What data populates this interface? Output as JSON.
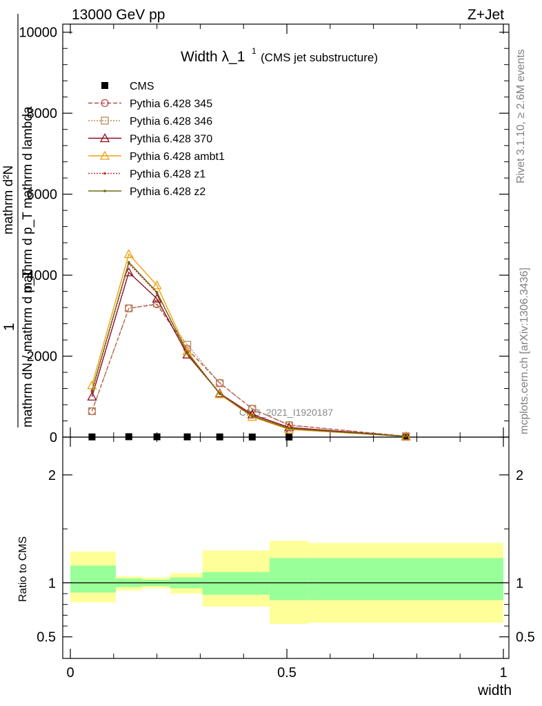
{
  "header": {
    "left": "13000 GeV pp",
    "right": "Z+Jet"
  },
  "title_main": "Width λ_1",
  "title_sup": "1",
  "title_sub": "(CMS jet substructure)",
  "side_right_top": "Rivet 3.1.10, ≥ 2.6M events",
  "side_right_bottom": "mcplots.cern.ch [arXiv:1306.3436]",
  "watermark": "CMS_2021_I1920187",
  "ylabel_main_num": "1",
  "ylabel_main_den": "mathrm dN / mathrm d p_T",
  "ylabel_main_frac_num": "mathrm d²N",
  "ylabel_main_frac_den": "mathrm d p_T mathrm d lambda",
  "ylabel_ratio": "Ratio to CMS",
  "xlabel": "width",
  "chart_data": {
    "type": "line",
    "x": [
      0.05,
      0.135,
      0.2,
      0.27,
      0.345,
      0.42,
      0.505,
      0.775
    ],
    "xlim": [
      0,
      1
    ],
    "ylim": [
      0,
      10200
    ],
    "ratio_ylim": [
      0.3,
      2.35
    ],
    "x_ticks": [
      {
        "value": 0,
        "label": "0"
      },
      {
        "value": 0.5,
        "label": "0.5"
      },
      {
        "value": 1,
        "label": "1"
      }
    ],
    "y_ticks": [
      {
        "value": 0,
        "label": "0"
      },
      {
        "value": 2000,
        "label": "2000"
      },
      {
        "value": 4000,
        "label": "4000"
      },
      {
        "value": 6000,
        "label": "6000"
      },
      {
        "value": 8000,
        "label": "8000"
      },
      {
        "value": 10000,
        "label": "10000"
      }
    ],
    "ratio_ticks": [
      {
        "value": 0.5,
        "label": "0.5"
      },
      {
        "value": 1,
        "label": "1"
      },
      {
        "value": 2,
        "label": "2"
      }
    ],
    "series": [
      {
        "name": "CMS",
        "color": "#000000",
        "marker": "square",
        "dash": "none",
        "values": [
          5,
          10,
          8,
          6,
          5,
          3,
          2,
          0
        ]
      },
      {
        "name": "Pythia 6.428 345",
        "color": "#b9494e",
        "marker": "circle",
        "dash": "6,3",
        "values": [
          640,
          3180,
          3280,
          2180,
          1340,
          700,
          300,
          20
        ]
      },
      {
        "name": "Pythia 6.428 346",
        "color": "#b58a5a",
        "marker": "square-open",
        "dash": "2,2",
        "values": [
          640,
          3180,
          3300,
          2280,
          1330,
          700,
          290,
          20
        ]
      },
      {
        "name": "Pythia 6.428 370",
        "color": "#8b0a1e",
        "marker": "triangle",
        "dash": "none",
        "values": [
          1000,
          4070,
          3420,
          2040,
          1080,
          560,
          240,
          18
        ]
      },
      {
        "name": "Pythia 6.428 ambt1",
        "color": "#f0a010",
        "marker": "triangle",
        "dash": "none",
        "values": [
          1280,
          4520,
          3750,
          2120,
          1060,
          500,
          190,
          15
        ]
      },
      {
        "name": "Pythia 6.428 z1",
        "color": "#cc2a2a",
        "marker": "dot",
        "dash": "2,2",
        "values": [
          1120,
          4280,
          3560,
          2090,
          1090,
          530,
          220,
          16
        ]
      },
      {
        "name": "Pythia 6.428 z2",
        "color": "#6b6b10",
        "marker": "dot",
        "dash": "none",
        "values": [
          1150,
          4320,
          3580,
          2080,
          1070,
          520,
          210,
          16
        ]
      }
    ],
    "ratio_bands": [
      {
        "x0": 0.0,
        "x1": 0.105,
        "yellow": [
          0.82,
          1.29
        ],
        "green": [
          0.91,
          1.16
        ]
      },
      {
        "x0": 0.105,
        "x1": 0.165,
        "yellow": [
          0.93,
          1.06
        ],
        "green": [
          0.96,
          1.04
        ]
      },
      {
        "x0": 0.165,
        "x1": 0.23,
        "yellow": [
          0.95,
          1.05
        ],
        "green": [
          0.97,
          1.03
        ]
      },
      {
        "x0": 0.23,
        "x1": 0.305,
        "yellow": [
          0.9,
          1.09
        ],
        "green": [
          0.95,
          1.05
        ]
      },
      {
        "x0": 0.305,
        "x1": 0.46,
        "yellow": [
          0.78,
          1.3
        ],
        "green": [
          0.89,
          1.1
        ]
      },
      {
        "x0": 0.46,
        "x1": 0.55,
        "yellow": [
          0.62,
          1.39
        ],
        "green": [
          0.84,
          1.23
        ]
      },
      {
        "x0": 0.55,
        "x1": 1.0,
        "yellow": [
          0.63,
          1.37
        ],
        "green": [
          0.84,
          1.23
        ]
      }
    ],
    "colors": {
      "band_yellow": "#ffff99",
      "band_green": "#99ff99"
    }
  }
}
